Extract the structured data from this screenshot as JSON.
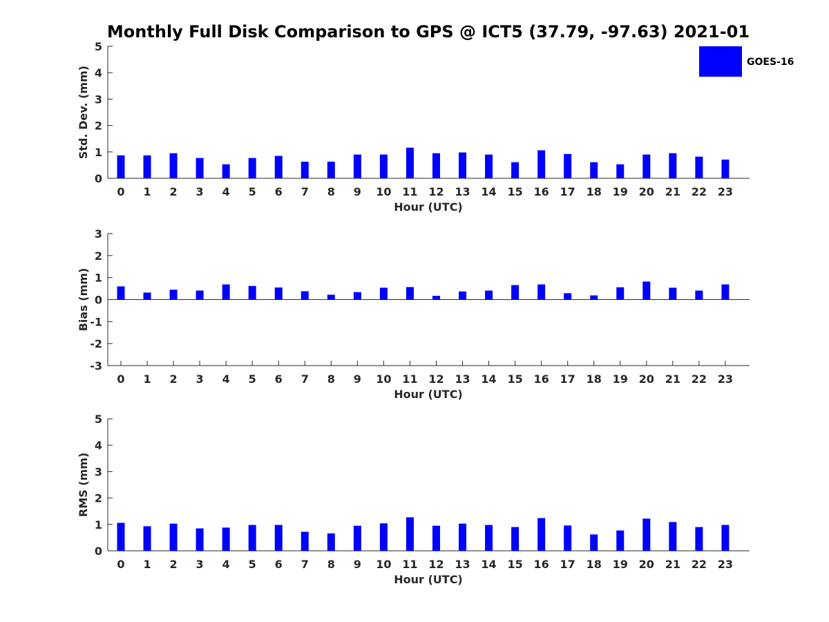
{
  "title": "Monthly Full Disk Comparison to GPS @ ICT5 (37.79, -97.63) 2021-01",
  "colors": {
    "bar": "#0000ff",
    "axis": "#262626"
  },
  "legend": {
    "label": "GOES-16",
    "placement": "top-right"
  },
  "chart_data": [
    {
      "type": "bar",
      "ylabel": "Std. Dev. (mm)",
      "xlabel": "Hour (UTC)",
      "ylim": [
        0,
        5
      ],
      "yticks": [
        "0",
        "1",
        "2",
        "3",
        "4",
        "5"
      ],
      "categories": [
        "0",
        "1",
        "2",
        "3",
        "4",
        "5",
        "6",
        "7",
        "8",
        "9",
        "10",
        "11",
        "12",
        "13",
        "14",
        "15",
        "16",
        "17",
        "18",
        "19",
        "20",
        "21",
        "22",
        "23"
      ],
      "series": [
        {
          "name": "GOES-16",
          "values": [
            0.87,
            0.87,
            0.95,
            0.77,
            0.53,
            0.77,
            0.85,
            0.63,
            0.63,
            0.9,
            0.9,
            1.16,
            0.95,
            0.98,
            0.9,
            0.61,
            1.06,
            0.92,
            0.61,
            0.53,
            0.9,
            0.95,
            0.82,
            0.71
          ]
        }
      ]
    },
    {
      "type": "bar",
      "ylabel": "Bias (mm)",
      "xlabel": "Hour (UTC)",
      "ylim": [
        -3,
        3
      ],
      "yticks": [
        "-3",
        "-2",
        "-1",
        "0",
        "1",
        "2",
        "3"
      ],
      "categories": [
        "0",
        "1",
        "2",
        "3",
        "4",
        "5",
        "6",
        "7",
        "8",
        "9",
        "10",
        "11",
        "12",
        "13",
        "14",
        "15",
        "16",
        "17",
        "18",
        "19",
        "20",
        "21",
        "22",
        "23"
      ],
      "series": [
        {
          "name": "GOES-16",
          "values": [
            0.6,
            0.32,
            0.45,
            0.41,
            0.69,
            0.62,
            0.55,
            0.38,
            0.22,
            0.34,
            0.54,
            0.57,
            0.17,
            0.37,
            0.41,
            0.66,
            0.69,
            0.29,
            0.19,
            0.56,
            0.82,
            0.54,
            0.41,
            0.69
          ]
        }
      ]
    },
    {
      "type": "bar",
      "ylabel": "RMS (mm)",
      "xlabel": "Hour (UTC)",
      "ylim": [
        0,
        5
      ],
      "yticks": [
        "0",
        "1",
        "2",
        "3",
        "4",
        "5"
      ],
      "categories": [
        "0",
        "1",
        "2",
        "3",
        "4",
        "5",
        "6",
        "7",
        "8",
        "9",
        "10",
        "11",
        "12",
        "13",
        "14",
        "15",
        "16",
        "17",
        "18",
        "19",
        "20",
        "21",
        "22",
        "23"
      ],
      "series": [
        {
          "name": "GOES-16",
          "values": [
            1.06,
            0.93,
            1.03,
            0.85,
            0.88,
            0.98,
            0.98,
            0.72,
            0.66,
            0.95,
            1.04,
            1.27,
            0.95,
            1.03,
            0.98,
            0.9,
            1.24,
            0.96,
            0.62,
            0.77,
            1.22,
            1.09,
            0.9,
            0.98
          ]
        }
      ]
    }
  ]
}
